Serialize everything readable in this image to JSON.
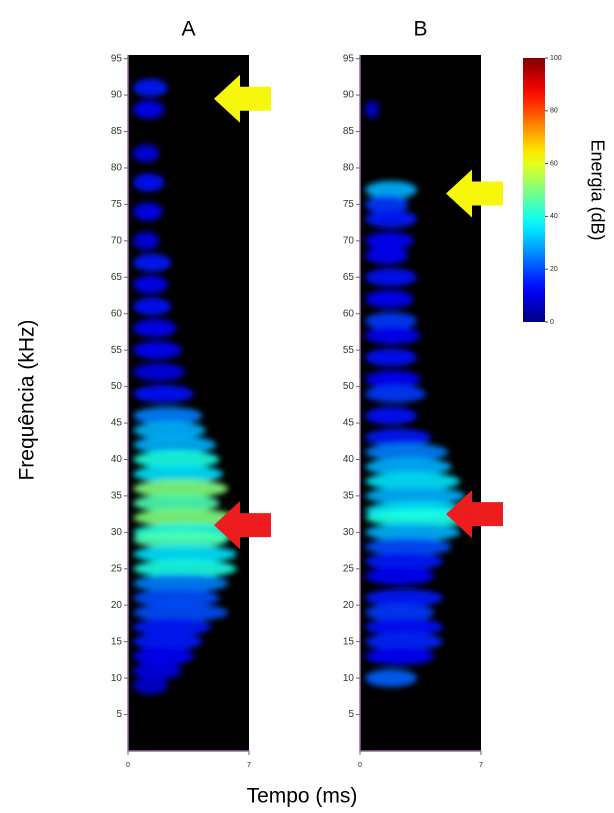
{
  "figure": {
    "ylabel": "Frequência (kHz)",
    "xlabel": "Tempo (ms)",
    "colorbar": {
      "label": "Energia (dB)",
      "colormap": "jet",
      "lim": [
        0,
        100
      ],
      "ticks": [
        0,
        20,
        40,
        60,
        80,
        100
      ]
    }
  },
  "chart_data": [
    {
      "type": "spectrogram",
      "title": "A",
      "xlim": [
        0,
        7
      ],
      "xticks": [
        0,
        7
      ],
      "ylim": [
        0,
        95.5
      ],
      "yticks": [
        5,
        10,
        15,
        20,
        25,
        30,
        35,
        40,
        45,
        50,
        55,
        60,
        65,
        70,
        75,
        80,
        85,
        90,
        95
      ],
      "bands": [
        {
          "frequency": 91,
          "duration": 2.0,
          "energy": 15
        },
        {
          "frequency": 88,
          "duration": 1.8,
          "energy": 12
        },
        {
          "frequency": 82,
          "duration": 1.5,
          "energy": 10
        },
        {
          "frequency": 78,
          "duration": 1.8,
          "energy": 14
        },
        {
          "frequency": 74,
          "duration": 1.7,
          "energy": 12
        },
        {
          "frequency": 70,
          "duration": 1.5,
          "energy": 10
        },
        {
          "frequency": 67,
          "duration": 2.2,
          "energy": 15
        },
        {
          "frequency": 64,
          "duration": 2.0,
          "energy": 12
        },
        {
          "frequency": 61,
          "duration": 2.2,
          "energy": 14
        },
        {
          "frequency": 58,
          "duration": 2.5,
          "energy": 12
        },
        {
          "frequency": 55,
          "duration": 2.8,
          "energy": 12
        },
        {
          "frequency": 52,
          "duration": 3.0,
          "energy": 10
        },
        {
          "frequency": 49,
          "duration": 3.5,
          "energy": 14
        },
        {
          "frequency": 46,
          "duration": 4.0,
          "energy": 25
        },
        {
          "frequency": 44,
          "duration": 4.2,
          "energy": 30
        },
        {
          "frequency": 42,
          "duration": 4.8,
          "energy": 30
        },
        {
          "frequency": 40,
          "duration": 5.0,
          "energy": 40
        },
        {
          "frequency": 38,
          "duration": 5.2,
          "energy": 35
        },
        {
          "frequency": 36,
          "duration": 5.5,
          "energy": 50
        },
        {
          "frequency": 34,
          "duration": 5.0,
          "energy": 45
        },
        {
          "frequency": 32,
          "duration": 6.0,
          "energy": 50
        },
        {
          "frequency": 30,
          "duration": 6.2,
          "energy": 40
        },
        {
          "frequency": 29,
          "duration": 5.5,
          "energy": 45
        },
        {
          "frequency": 27,
          "duration": 6.0,
          "energy": 35
        },
        {
          "frequency": 25,
          "duration": 6.0,
          "energy": 40
        },
        {
          "frequency": 23,
          "duration": 5.5,
          "energy": 25
        },
        {
          "frequency": 21,
          "duration": 5.0,
          "energy": 20
        },
        {
          "frequency": 19,
          "duration": 5.5,
          "energy": 20
        },
        {
          "frequency": 17,
          "duration": 4.5,
          "energy": 15
        },
        {
          "frequency": 15,
          "duration": 4.0,
          "energy": 15
        },
        {
          "frequency": 13,
          "duration": 3.5,
          "energy": 12
        },
        {
          "frequency": 11,
          "duration": 2.8,
          "energy": 10
        },
        {
          "frequency": 9,
          "duration": 2.0,
          "energy": 8
        }
      ],
      "arrows": [
        {
          "frequency": 89.5,
          "color": "#f7f70c"
        },
        {
          "frequency": 31,
          "color": "#ee1c1c"
        }
      ]
    },
    {
      "type": "spectrogram",
      "title": "B",
      "xlim": [
        0,
        7
      ],
      "xticks": [
        0,
        7
      ],
      "ylim": [
        0,
        95.5
      ],
      "yticks": [
        5,
        10,
        15,
        20,
        25,
        30,
        35,
        40,
        45,
        50,
        55,
        60,
        65,
        70,
        75,
        80,
        85,
        90,
        95
      ],
      "bands": [
        {
          "frequency": 88,
          "duration": 0.8,
          "energy": 8
        },
        {
          "frequency": 77,
          "duration": 3.0,
          "energy": 30
        },
        {
          "frequency": 75,
          "duration": 2.5,
          "energy": 18
        },
        {
          "frequency": 73,
          "duration": 3.0,
          "energy": 15
        },
        {
          "frequency": 70,
          "duration": 2.8,
          "energy": 12
        },
        {
          "frequency": 68,
          "duration": 2.5,
          "energy": 12
        },
        {
          "frequency": 65,
          "duration": 3.0,
          "energy": 14
        },
        {
          "frequency": 62,
          "duration": 2.8,
          "energy": 12
        },
        {
          "frequency": 59,
          "duration": 3.0,
          "energy": 18
        },
        {
          "frequency": 57,
          "duration": 3.2,
          "energy": 12
        },
        {
          "frequency": 54,
          "duration": 3.0,
          "energy": 14
        },
        {
          "frequency": 51,
          "duration": 3.2,
          "energy": 12
        },
        {
          "frequency": 49,
          "duration": 3.5,
          "energy": 18
        },
        {
          "frequency": 46,
          "duration": 3.0,
          "energy": 14
        },
        {
          "frequency": 43,
          "duration": 3.8,
          "energy": 15
        },
        {
          "frequency": 41,
          "duration": 4.8,
          "energy": 25
        },
        {
          "frequency": 39,
          "duration": 5.0,
          "energy": 30
        },
        {
          "frequency": 37,
          "duration": 5.5,
          "energy": 35
        },
        {
          "frequency": 35,
          "duration": 5.8,
          "energy": 30
        },
        {
          "frequency": 33,
          "duration": 6.0,
          "energy": 35
        },
        {
          "frequency": 32,
          "duration": 6.5,
          "energy": 40
        },
        {
          "frequency": 30,
          "duration": 5.5,
          "energy": 30
        },
        {
          "frequency": 28,
          "duration": 5.0,
          "energy": 20
        },
        {
          "frequency": 26,
          "duration": 4.5,
          "energy": 15
        },
        {
          "frequency": 24,
          "duration": 4.0,
          "energy": 12
        },
        {
          "frequency": 21,
          "duration": 4.5,
          "energy": 15
        },
        {
          "frequency": 19,
          "duration": 4.0,
          "energy": 18
        },
        {
          "frequency": 17,
          "duration": 4.5,
          "energy": 14
        },
        {
          "frequency": 15,
          "duration": 4.5,
          "energy": 16
        },
        {
          "frequency": 13,
          "duration": 4.0,
          "energy": 12
        },
        {
          "frequency": 10,
          "duration": 3.0,
          "energy": 22
        }
      ],
      "arrows": [
        {
          "frequency": 76.5,
          "color": "#f7f70c"
        },
        {
          "frequency": 32.5,
          "color": "#ee1c1c"
        }
      ]
    }
  ]
}
